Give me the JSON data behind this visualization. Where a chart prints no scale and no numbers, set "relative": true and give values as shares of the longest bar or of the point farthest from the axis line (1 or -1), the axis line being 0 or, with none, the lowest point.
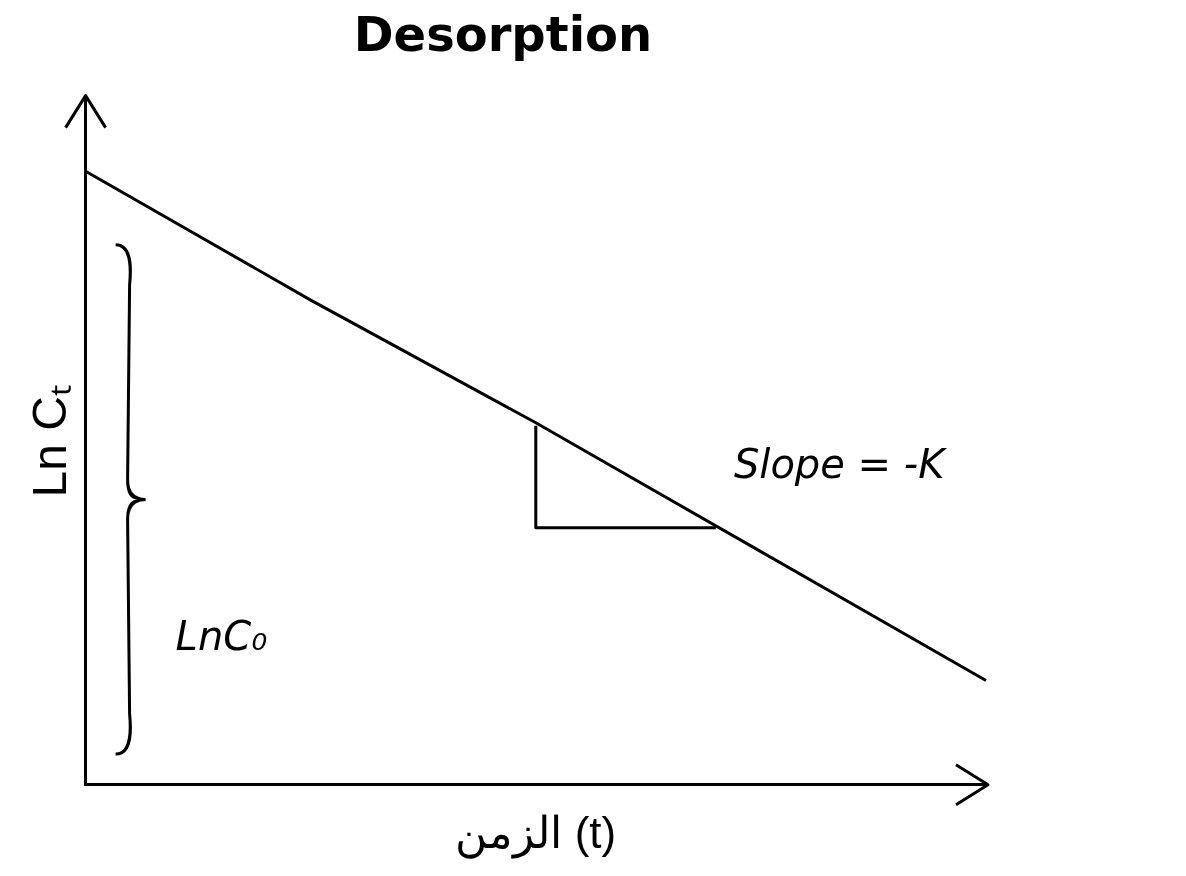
{
  "chart_data": {
    "type": "line",
    "title": "Desorption",
    "xlabel": "الزمن (t)",
    "ylabel": "Ln Cₜ",
    "relative": true,
    "categories": [
      null,
      null,
      null,
      null,
      null
    ],
    "series": [
      {
        "color": "#000000",
        "values": [
          1,
          0.79,
          0.59,
          0.38,
          0.17
        ]
      }
    ],
    "annotations": [
      "Slope = -K",
      "LnC₀"
    ],
    "grid": false,
    "legend": false,
    "marker": "none",
    "line_style": "solid"
  }
}
